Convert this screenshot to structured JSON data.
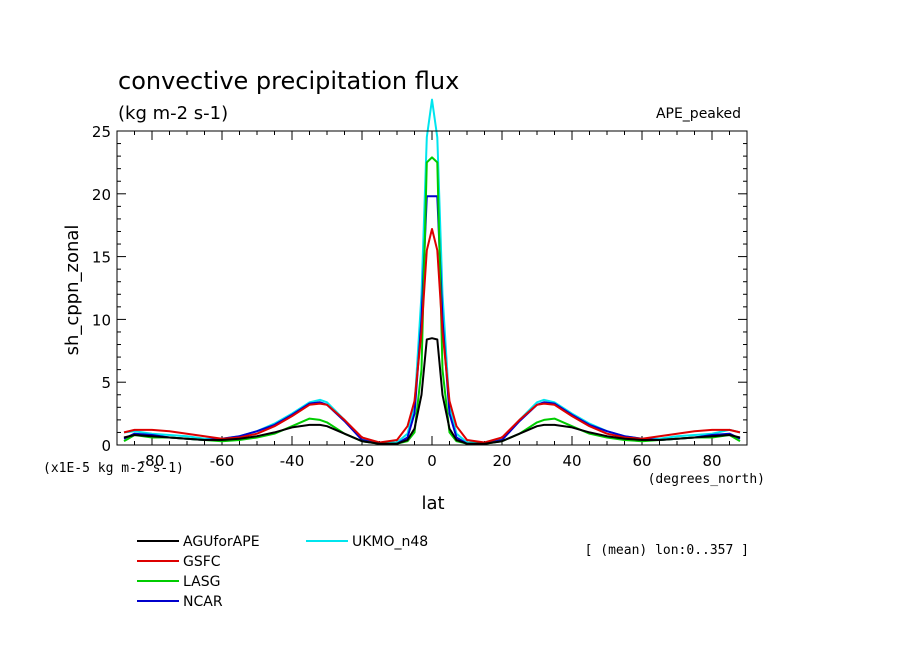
{
  "chart_data": {
    "type": "line",
    "title": "convective precipitation flux",
    "subtitle": "(kg m-2 s-1)",
    "experiment": "APE_peaked",
    "ylabel": "sh_cppn_zonal",
    "xlabel": "lat",
    "x_units": "(degrees_north)",
    "y_scale_note": "(x1E-5 kg m-2 s-1)",
    "footnote": "[ (mean) lon:0..357 ]",
    "xlim": [
      -90,
      90
    ],
    "ylim": [
      0,
      25
    ],
    "x_ticks": [
      -80,
      -60,
      -40,
      -20,
      0,
      20,
      40,
      60,
      80
    ],
    "y_ticks": [
      0,
      5,
      10,
      15,
      20,
      25
    ],
    "x": [
      -88,
      -85,
      -80,
      -75,
      -70,
      -65,
      -60,
      -55,
      -50,
      -45,
      -40,
      -35,
      -32,
      -30,
      -25,
      -20,
      -15,
      -10,
      -7,
      -5,
      -3,
      -1.5,
      0,
      1.5,
      3,
      5,
      7,
      10,
      15,
      20,
      25,
      30,
      32,
      35,
      40,
      45,
      50,
      55,
      60,
      65,
      70,
      75,
      80,
      85,
      88
    ],
    "series": [
      {
        "name": "AGUforAPE",
        "color": "#000000",
        "values": [
          0.6,
          0.8,
          0.7,
          0.6,
          0.5,
          0.4,
          0.4,
          0.5,
          0.7,
          1.0,
          1.4,
          1.6,
          1.6,
          1.5,
          0.9,
          0.3,
          0.1,
          0.1,
          0.4,
          1.3,
          4.0,
          8.4,
          8.5,
          8.4,
          4.0,
          1.3,
          0.4,
          0.1,
          0.1,
          0.3,
          0.9,
          1.5,
          1.6,
          1.6,
          1.4,
          1.0,
          0.7,
          0.5,
          0.4,
          0.4,
          0.5,
          0.6,
          0.7,
          0.8,
          0.6
        ]
      },
      {
        "name": "GSFC",
        "color": "#dd0000",
        "values": [
          1.0,
          1.2,
          1.2,
          1.1,
          0.9,
          0.7,
          0.5,
          0.6,
          0.9,
          1.5,
          2.3,
          3.2,
          3.3,
          3.2,
          2.0,
          0.6,
          0.2,
          0.4,
          1.5,
          3.5,
          9.0,
          15.5,
          17.2,
          15.5,
          9.0,
          3.5,
          1.5,
          0.4,
          0.2,
          0.6,
          2.0,
          3.2,
          3.3,
          3.2,
          2.3,
          1.5,
          0.9,
          0.6,
          0.5,
          0.7,
          0.9,
          1.1,
          1.2,
          1.2,
          1.0
        ]
      },
      {
        "name": "LASG",
        "color": "#00cc00",
        "values": [
          0.3,
          0.8,
          0.6,
          0.6,
          0.5,
          0.4,
          0.3,
          0.4,
          0.6,
          0.9,
          1.5,
          2.1,
          2.0,
          1.8,
          0.9,
          0.3,
          0.1,
          0.1,
          0.3,
          1.0,
          6.0,
          22.5,
          22.9,
          22.5,
          6.0,
          1.0,
          0.3,
          0.1,
          0.1,
          0.3,
          0.9,
          1.8,
          2.0,
          2.1,
          1.5,
          0.9,
          0.6,
          0.4,
          0.3,
          0.4,
          0.5,
          0.6,
          0.6,
          0.8,
          0.3
        ]
      },
      {
        "name": "NCAR",
        "color": "#0000cc",
        "values": [
          0.5,
          0.9,
          0.8,
          0.6,
          0.5,
          0.4,
          0.5,
          0.7,
          1.1,
          1.6,
          2.4,
          3.3,
          3.4,
          3.2,
          1.9,
          0.4,
          0.1,
          0.1,
          0.6,
          2.5,
          10.0,
          19.8,
          19.8,
          19.8,
          10.0,
          2.5,
          0.6,
          0.1,
          0.1,
          0.4,
          1.9,
          3.2,
          3.4,
          3.3,
          2.4,
          1.6,
          1.1,
          0.7,
          0.5,
          0.4,
          0.5,
          0.6,
          0.8,
          0.9,
          0.5
        ]
      },
      {
        "name": "UKMO_n48",
        "color": "#00e5ee",
        "values": [
          1.0,
          1.1,
          0.9,
          0.8,
          0.7,
          0.5,
          0.5,
          0.7,
          1.1,
          1.7,
          2.5,
          3.4,
          3.6,
          3.4,
          2.0,
          0.5,
          0.2,
          0.2,
          0.9,
          3.0,
          12.0,
          24.5,
          27.5,
          24.5,
          12.0,
          3.0,
          0.9,
          0.2,
          0.2,
          0.5,
          2.0,
          3.4,
          3.6,
          3.4,
          2.5,
          1.7,
          1.1,
          0.7,
          0.5,
          0.5,
          0.7,
          0.8,
          0.9,
          1.2,
          1.0
        ]
      }
    ],
    "legend_placement": "bottom-left"
  }
}
